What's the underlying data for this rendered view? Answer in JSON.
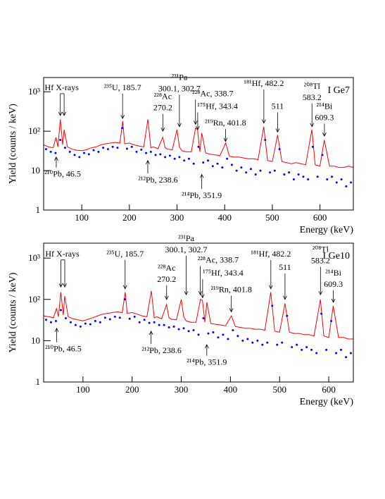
{
  "chart_data": [
    {
      "type": "line",
      "title": "I  Ge7",
      "xlabel": "Energy (keV)",
      "ylabel": "Yield (counts / keV)",
      "xlim": [
        20,
        670
      ],
      "xticks": [
        100,
        200,
        300,
        400,
        500,
        600
      ],
      "ylim": [
        1,
        2300
      ],
      "log_y": true,
      "yticks": [
        1,
        10,
        {
          "value": 100,
          "label": "10²"
        },
        {
          "value": 1000,
          "label": "10³"
        }
      ],
      "series": [
        {
          "style": "line",
          "color": "#ff0000",
          "x": [
            20,
            30,
            40,
            46,
            50,
            55,
            60,
            63,
            70,
            80,
            90,
            100,
            110,
            120,
            130,
            140,
            150,
            160,
            170,
            180,
            186,
            190,
            200,
            210,
            220,
            230,
            239,
            245,
            250,
            260,
            270,
            275,
            280,
            290,
            300,
            305,
            310,
            320,
            330,
            339,
            343,
            348,
            352,
            360,
            370,
            380,
            390,
            402,
            410,
            420,
            430,
            440,
            450,
            460,
            470,
            482,
            490,
            500,
            511,
            520,
            530,
            540,
            550,
            560,
            570,
            583,
            590,
            600,
            609,
            620,
            630,
            640,
            650,
            660,
            670
          ],
          "values": [
            45,
            40,
            38,
            70,
            40,
            200,
            45,
            110,
            40,
            35,
            33,
            32,
            34,
            38,
            40,
            45,
            48,
            50,
            52,
            50,
            180,
            48,
            50,
            45,
            42,
            40,
            200,
            38,
            40,
            36,
            70,
            38,
            35,
            34,
            110,
            40,
            32,
            30,
            30,
            120,
            110,
            30,
            90,
            28,
            26,
            25,
            24,
            50,
            23,
            22,
            22,
            21,
            20,
            20,
            19,
            130,
            18,
            17,
            80,
            17,
            16,
            15,
            16,
            15,
            14,
            110,
            14,
            13,
            60,
            13,
            13,
            12,
            12,
            13,
            12
          ]
        },
        {
          "style": "dots",
          "color": "#0000ff",
          "x": [
            25,
            35,
            45,
            55,
            65,
            75,
            85,
            95,
            105,
            115,
            125,
            135,
            145,
            155,
            165,
            175,
            185,
            195,
            205,
            215,
            225,
            235,
            245,
            255,
            265,
            275,
            285,
            295,
            305,
            315,
            325,
            335,
            345,
            355,
            365,
            375,
            385,
            395,
            405,
            415,
            425,
            435,
            445,
            455,
            465,
            475,
            485,
            495,
            505,
            515,
            525,
            535,
            545,
            555,
            565,
            575,
            585,
            595,
            605,
            615,
            625,
            635,
            645,
            655,
            665
          ],
          "values": [
            35,
            30,
            28,
            60,
            38,
            30,
            25,
            22,
            28,
            26,
            33,
            30,
            38,
            35,
            40,
            38,
            120,
            36,
            40,
            30,
            34,
            28,
            30,
            25,
            26,
            22,
            24,
            20,
            22,
            18,
            20,
            15,
            40,
            16,
            18,
            13,
            15,
            12,
            20,
            14,
            10,
            12,
            9,
            11,
            8,
            10,
            60,
            9,
            10,
            35,
            8,
            9,
            6,
            8,
            7,
            6,
            40,
            7,
            25,
            6,
            7,
            5,
            6,
            4,
            5
          ]
        }
      ],
      "annotations": [
        {
          "lines": [
            "Hf X-rays"
          ],
          "x": 58,
          "y": 1100,
          "tip": 250,
          "arrows": [
            55,
            63
          ]
        },
        {
          "lines": [
            "²³⁵U, 185.7"
          ],
          "x": 185.7,
          "y": 1100,
          "tip": 210
        },
        {
          "lines": [
            "²²⁸Ac",
            "270.2"
          ],
          "x": 270.2,
          "y": 650,
          "tip": 100
        },
        {
          "lines": [
            "²³¹Pa",
            "300.1, 302.7"
          ],
          "x": 305,
          "y": 2000,
          "tip": 130
        },
        {
          "lines": [
            "²²⁸Ac, 338.7"
          ],
          "x": 375,
          "y": 780,
          "tip": 150,
          "arrows": [
            338.7
          ]
        },
        {
          "lines": [
            "¹⁷⁵Hf, 343.4"
          ],
          "x": 385,
          "y": 370,
          "tip": 110,
          "arrows": [
            343.4
          ]
        },
        {
          "lines": [
            "²¹⁹Rn, 401.8"
          ],
          "x": 401.8,
          "y": 140,
          "tip": 55
        },
        {
          "lines": [
            "¹⁸¹Hf, 482.2"
          ],
          "x": 482.2,
          "y": 1400,
          "tip": 160
        },
        {
          "lines": [
            "511"
          ],
          "x": 511,
          "y": 370,
          "tip": 95
        },
        {
          "lines": [
            "²⁰⁸Tl",
            "583.2"
          ],
          "x": 583.2,
          "y": 1200,
          "tip": 130
        },
        {
          "lines": [
            "²¹⁴Bi",
            "609.3"
          ],
          "x": 609.3,
          "y": 370,
          "tip": 75
        },
        {
          "lines": [
            "²¹⁰Pb, 46.5"
          ],
          "x": 60,
          "y": 7,
          "tip": 22,
          "arrows": [
            46.5
          ]
        },
        {
          "lines": [
            "²¹²Pb, 238.6"
          ],
          "x": 260,
          "y": 5,
          "tip": 18,
          "arrows": [
            238.6
          ]
        },
        {
          "lines": [
            "²¹⁴Pb, 351.9"
          ],
          "x": 351.9,
          "y": 2,
          "tip": 8
        }
      ]
    },
    {
      "type": "line",
      "title": "I  Ge10",
      "xlabel": "Energy (keV)",
      "ylabel": "Yield (counts / keV)",
      "xlim": [
        20,
        650
      ],
      "xticks": [
        100,
        200,
        300,
        400,
        500,
        600
      ],
      "ylim": [
        1,
        2300
      ],
      "log_y": true,
      "yticks": [
        1,
        10,
        {
          "value": 100,
          "label": "10²"
        },
        {
          "value": 1000,
          "label": "10³"
        }
      ],
      "series": [
        {
          "style": "line",
          "color": "#ff0000",
          "x": [
            20,
            30,
            40,
            46,
            50,
            55,
            60,
            63,
            70,
            80,
            90,
            100,
            110,
            120,
            130,
            140,
            150,
            160,
            170,
            180,
            186,
            190,
            200,
            210,
            220,
            230,
            239,
            245,
            250,
            260,
            270,
            275,
            280,
            290,
            300,
            305,
            310,
            320,
            330,
            339,
            343,
            348,
            352,
            360,
            370,
            380,
            390,
            402,
            410,
            420,
            430,
            440,
            450,
            460,
            470,
            482,
            490,
            500,
            511,
            520,
            530,
            540,
            550,
            560,
            570,
            583,
            590,
            600,
            609,
            620,
            630,
            640,
            650
          ],
          "values": [
            40,
            38,
            36,
            60,
            38,
            150,
            42,
            120,
            38,
            34,
            32,
            30,
            33,
            36,
            40,
            44,
            46,
            48,
            50,
            48,
            150,
            46,
            48,
            44,
            40,
            38,
            160,
            36,
            38,
            34,
            75,
            36,
            33,
            32,
            100,
            38,
            30,
            28,
            28,
            100,
            95,
            28,
            85,
            26,
            25,
            24,
            23,
            40,
            22,
            21,
            20,
            20,
            19,
            19,
            18,
            150,
            17,
            16,
            80,
            16,
            15,
            15,
            14,
            14,
            13,
            100,
            13,
            12,
            70,
            12,
            12,
            11,
            11
          ]
        },
        {
          "style": "dots",
          "color": "#0000ff",
          "x": [
            25,
            35,
            45,
            55,
            65,
            75,
            85,
            95,
            105,
            115,
            125,
            135,
            145,
            155,
            165,
            175,
            185,
            195,
            205,
            215,
            225,
            235,
            245,
            255,
            265,
            275,
            285,
            295,
            305,
            315,
            325,
            335,
            345,
            355,
            365,
            375,
            385,
            395,
            405,
            415,
            425,
            435,
            445,
            455,
            465,
            475,
            485,
            495,
            505,
            515,
            525,
            535,
            545,
            555,
            565,
            575,
            585,
            595,
            605,
            615,
            625,
            635,
            645
          ],
          "values": [
            32,
            28,
            30,
            55,
            35,
            28,
            24,
            22,
            26,
            25,
            30,
            28,
            36,
            33,
            38,
            36,
            100,
            34,
            38,
            28,
            32,
            27,
            28,
            24,
            24,
            21,
            22,
            19,
            20,
            17,
            18,
            14,
            35,
            15,
            16,
            12,
            14,
            11,
            18,
            13,
            10,
            11,
            9,
            10,
            8,
            9,
            70,
            8,
            9,
            40,
            7,
            8,
            6,
            7,
            6,
            5,
            45,
            6,
            30,
            5,
            6,
            4,
            5
          ]
        }
      ],
      "annotations": [
        {
          "lines": [
            "Hf X-rays"
          ],
          "x": 58,
          "y": 1100,
          "tip": 200,
          "arrows": [
            55,
            63
          ]
        },
        {
          "lines": [
            "²³⁵U, 185.7"
          ],
          "x": 185.7,
          "y": 1100,
          "tip": 180
        },
        {
          "lines": [
            "²²⁸Ac",
            "270.2"
          ],
          "x": 270.2,
          "y": 500,
          "tip": 100
        },
        {
          "lines": [
            "²³¹Pa",
            "300.1, 302.7"
          ],
          "x": 310,
          "y": 2600,
          "tip": 130
        },
        {
          "lines": [
            "²²⁸Ac, 338.7"
          ],
          "x": 375,
          "y": 780,
          "tip": 130,
          "arrows": [
            338.7
          ]
        },
        {
          "lines": [
            "¹⁷⁵Hf, 343.4"
          ],
          "x": 385,
          "y": 380,
          "tip": 110,
          "arrows": [
            343.4
          ]
        },
        {
          "lines": [
            "²¹⁹Rn, 401.8"
          ],
          "x": 401.8,
          "y": 150,
          "tip": 50
        },
        {
          "lines": [
            "¹⁸¹Hf, 482.2"
          ],
          "x": 482.2,
          "y": 1100,
          "tip": 180
        },
        {
          "lines": [
            "511"
          ],
          "x": 511,
          "y": 520,
          "tip": 100
        },
        {
          "lines": [
            "²⁰⁸Tl",
            "583.2"
          ],
          "x": 583.2,
          "y": 1400,
          "tip": 130
        },
        {
          "lines": [
            "²¹⁴Bi",
            "609.3"
          ],
          "x": 609.3,
          "y": 380,
          "tip": 85
        },
        {
          "lines": [
            "²¹⁰Pb, 46.5"
          ],
          "x": 60,
          "y": 5.5,
          "tip": 20,
          "arrows": [
            46.5
          ]
        },
        {
          "lines": [
            "²¹²Pb, 238.6"
          ],
          "x": 260,
          "y": 5,
          "tip": 17,
          "arrows": [
            238.6
          ]
        },
        {
          "lines": [
            "²¹⁴Pb, 351.9"
          ],
          "x": 351.9,
          "y": 2.6,
          "tip": 8
        }
      ]
    }
  ]
}
